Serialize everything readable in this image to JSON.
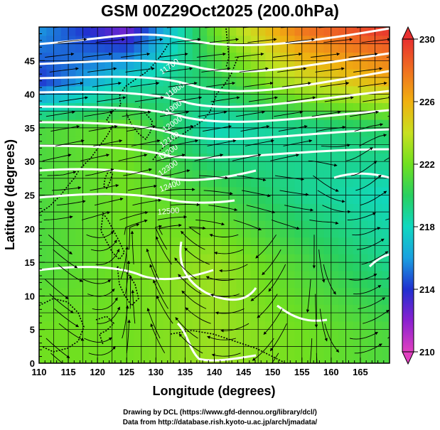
{
  "title": "GSM 00Z29Oct2025 (200.0hPa)",
  "x_axis": {
    "label": "Longitude (degrees)",
    "range": [
      110,
      170
    ],
    "ticks": [
      "110",
      "115",
      "120",
      "125",
      "130",
      "135",
      "140",
      "145",
      "150",
      "155",
      "160",
      "165"
    ]
  },
  "y_axis": {
    "label": "Latitude  (degrees)",
    "range": [
      0,
      50
    ],
    "ticks": [
      "0",
      "5",
      "10",
      "15",
      "20",
      "25",
      "30",
      "35",
      "40",
      "45"
    ]
  },
  "colorbar": {
    "range": [
      210,
      230
    ],
    "tick_labels": [
      "210",
      "214",
      "218",
      "222",
      "226",
      "230"
    ],
    "colors": [
      "#e040c0",
      "#8a20d0",
      "#2030d0",
      "#1aa0e0",
      "#10d8c0",
      "#28d060",
      "#70e020",
      "#c8e020",
      "#f0b010",
      "#f07020",
      "#e83030"
    ]
  },
  "contour_labels": [
    "11700",
    "11800",
    "11900",
    "12000",
    "12100",
    "12200",
    "12300",
    "12400",
    "12500"
  ],
  "credits": {
    "line1": "Drawing by DCL (https://www.gfd-dennou.org/library/dcl/)",
    "line2": "Data from http://database.rish.kyoto-u.ac.jp/arch/jmadata/"
  },
  "chart_data": {
    "type": "heatmap",
    "variable": "temperature with geopotential height contours and wind streamlines",
    "level": "200.0hPa",
    "xlabel": "Longitude (degrees)",
    "ylabel": "Latitude  (degrees)",
    "xlim": [
      110,
      170
    ],
    "ylim": [
      0,
      50
    ],
    "color_range": [
      210,
      230
    ],
    "grid": true,
    "legend": "colorbar-right",
    "field_estimate": {
      "lon": [
        110,
        125,
        140,
        155,
        170
      ],
      "lat": [
        50,
        42,
        35,
        25,
        15,
        5
      ],
      "values": [
        [
          216,
          212,
          222,
          228,
          230
        ],
        [
          214,
          218,
          220,
          224,
          226
        ],
        [
          221,
          222,
          218,
          219,
          220
        ],
        [
          221,
          222,
          221,
          219,
          218
        ],
        [
          221,
          222,
          223,
          221,
          219
        ],
        [
          222,
          222,
          223,
          222,
          221
        ]
      ]
    },
    "contour_levels": [
      11700,
      11800,
      11900,
      12000,
      12100,
      12200,
      12300,
      12400,
      12500
    ]
  }
}
